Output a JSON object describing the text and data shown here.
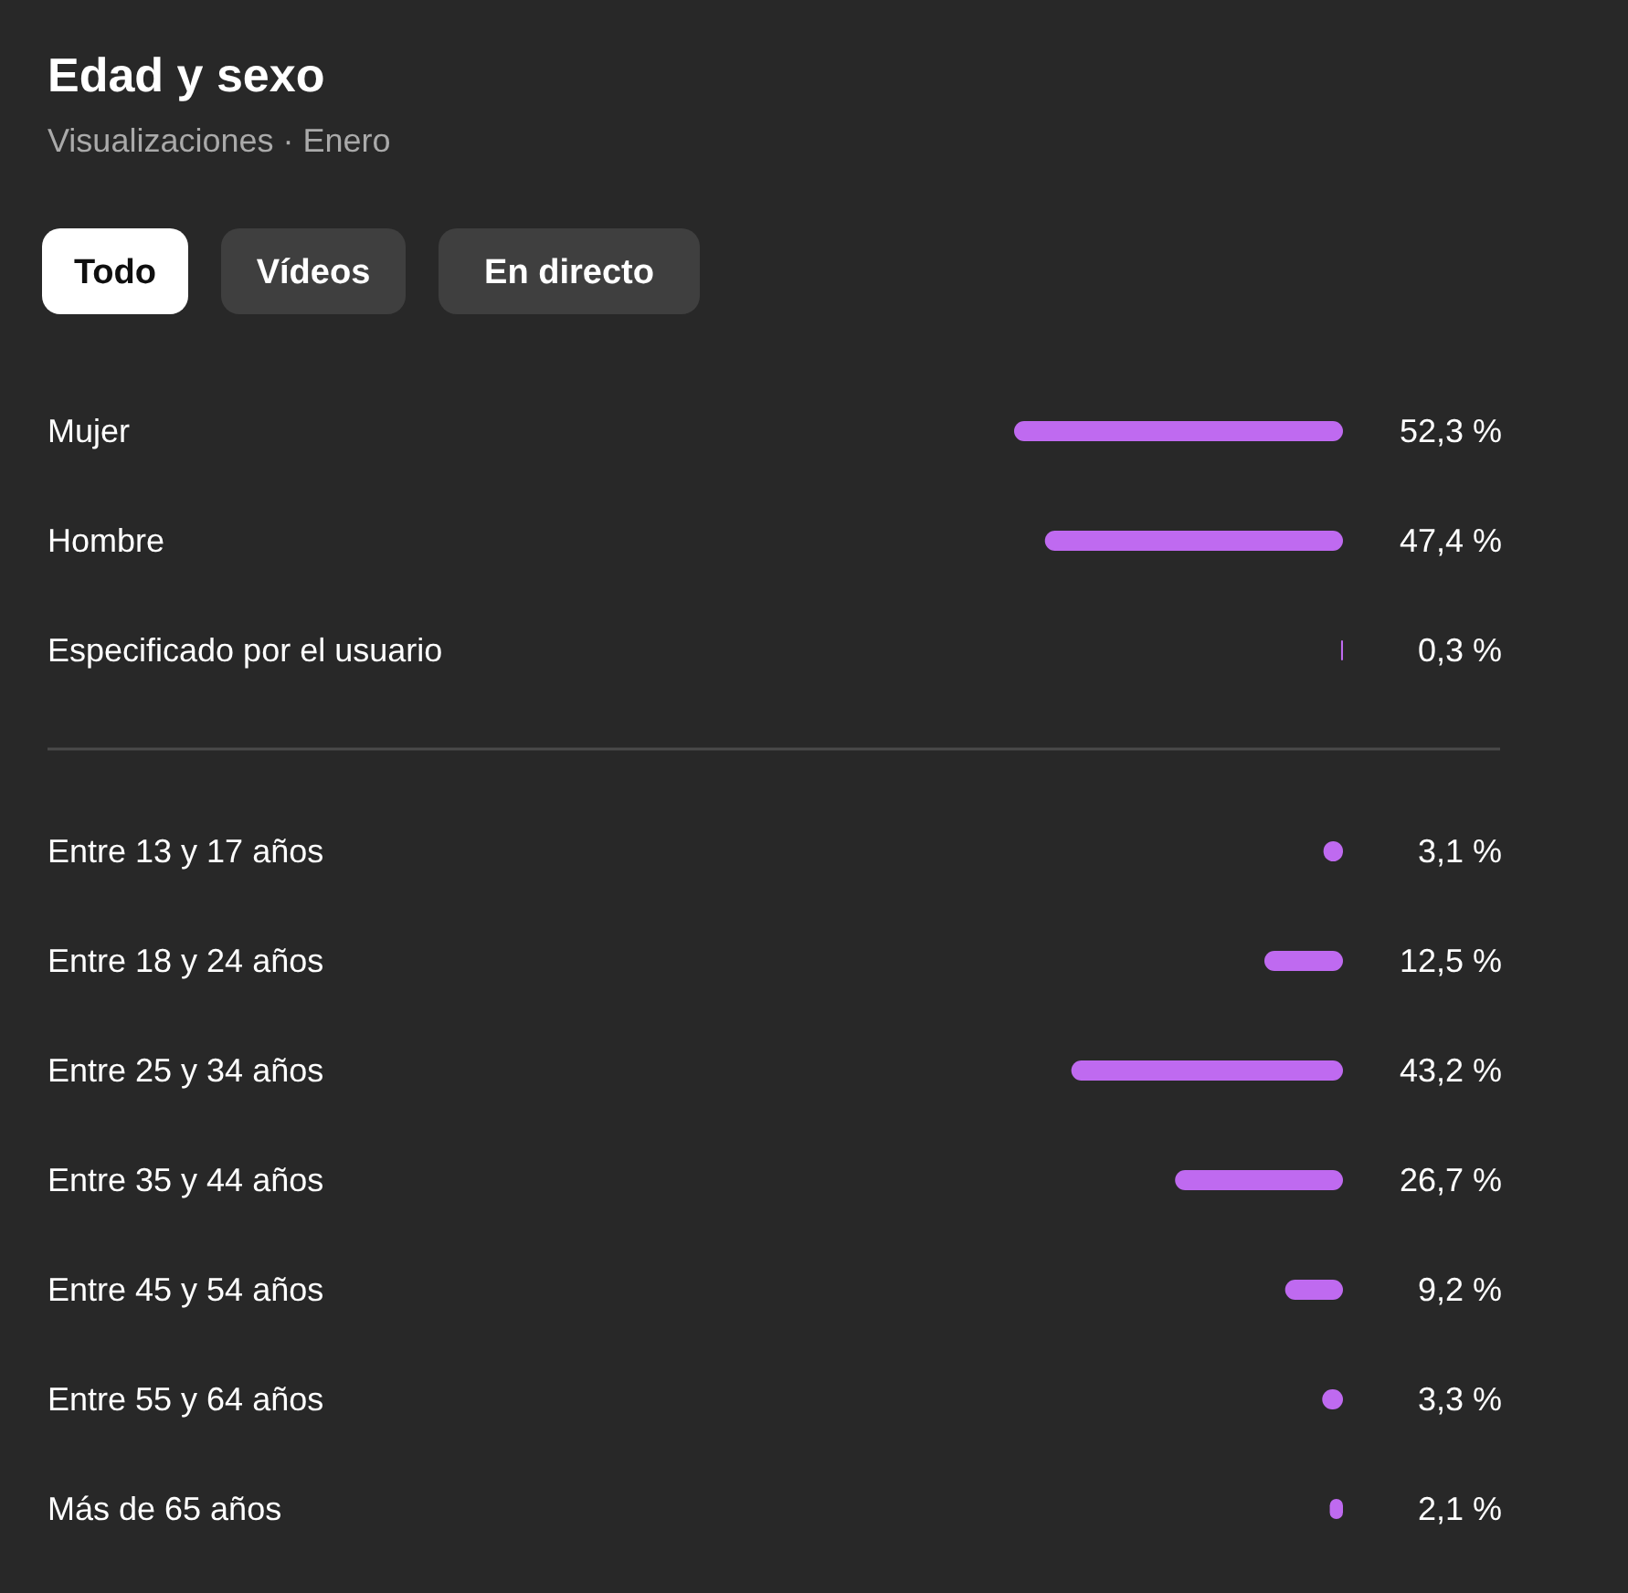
{
  "chart_data": [
    {
      "type": "other",
      "title": "Edad y sexo",
      "subtitle": "Visualizaciones · Enero",
      "annotations": [
        "Todo",
        "Vídeos",
        "En directo"
      ]
    },
    {
      "type": "bar",
      "orientation": "horizontal",
      "categories": [
        "Mujer",
        "Hombre",
        "Especificado por el usuario"
      ],
      "values": [
        52.3,
        47.4,
        0.3
      ],
      "value_labels": [
        "52,3 %",
        "47,4 %",
        "0,3 %"
      ],
      "color": "#bf6af0"
    },
    {
      "type": "bar",
      "orientation": "horizontal",
      "categories": [
        "Entre 13 y 17 años",
        "Entre 18 y 24 años",
        "Entre 25 y 34 años",
        "Entre 35 y 44 años",
        "Entre 45 y 54 años",
        "Entre 55 y 64 años",
        "Más de 65 años"
      ],
      "values": [
        3.1,
        12.5,
        43.2,
        26.7,
        9.2,
        3.3,
        2.1
      ],
      "value_labels": [
        "3,1 %",
        "12,5 %",
        "43,2 %",
        "26,7 %",
        "9,2 %",
        "3,3 %",
        "2,1 %"
      ],
      "color": "#bf6af0"
    }
  ]
}
